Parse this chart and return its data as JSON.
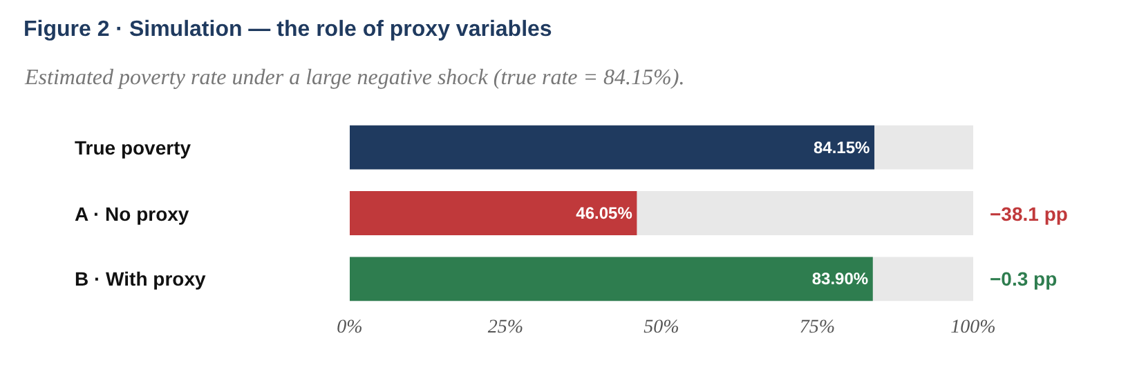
{
  "chart_data": {
    "type": "bar",
    "orientation": "horizontal",
    "title": "Figure 2 · Simulation — the role of proxy variables",
    "subtitle": "Estimated poverty rate under a large negative shock (true rate = 84.15%).",
    "categories": [
      "True poverty",
      "A · No proxy",
      "B · With proxy"
    ],
    "values": [
      84.15,
      46.05,
      83.9
    ],
    "value_labels": [
      "84.15%",
      "46.05%",
      "83.90%"
    ],
    "colors": [
      "#1f3a5f",
      "#c0393b",
      "#2e7d4f"
    ],
    "xlim": [
      0,
      100
    ],
    "xticks": [
      {
        "value": 0,
        "label": "0%"
      },
      {
        "value": 25,
        "label": "25%"
      },
      {
        "value": 50,
        "label": "50%"
      },
      {
        "value": 75,
        "label": "75%"
      },
      {
        "value": 100,
        "label": "100%"
      }
    ],
    "bands": [
      {
        "axis": "x",
        "from": 0,
        "to": 100,
        "color": "#e8e8e8"
      }
    ],
    "annotations": [
      "−38.1 pp",
      "−0.3 pp"
    ],
    "grid": false
  }
}
